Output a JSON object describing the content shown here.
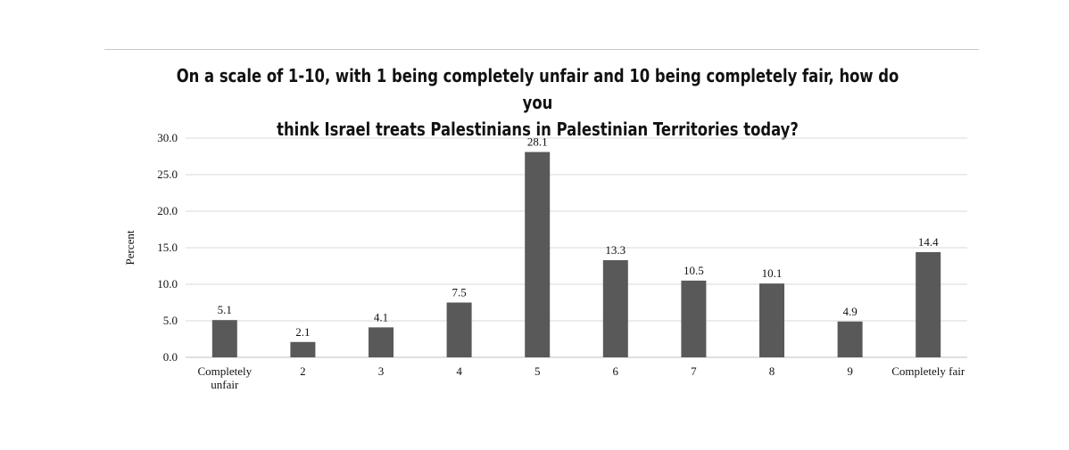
{
  "chart_data": {
    "type": "bar",
    "title_lines": [
      "On a scale of 1-10, with 1 being completely unfair and 10 being completely fair, how do you",
      "think Israel treats Palestinians in Palestinian Territories today?"
    ],
    "xlabel": "",
    "ylabel": "Percent",
    "ylim": [
      0,
      30
    ],
    "yticks": [
      "0.0",
      "5.0",
      "10.0",
      "15.0",
      "20.0",
      "25.0",
      "30.0"
    ],
    "categories": [
      [
        "Completely",
        "unfair"
      ],
      [
        "2"
      ],
      [
        "3"
      ],
      [
        "4"
      ],
      [
        "5"
      ],
      [
        "6"
      ],
      [
        "7"
      ],
      [
        "8"
      ],
      [
        "9"
      ],
      [
        "Completely fair"
      ]
    ],
    "values": [
      5.1,
      2.1,
      4.1,
      7.5,
      28.1,
      13.3,
      10.5,
      10.1,
      4.9,
      14.4
    ],
    "value_labels": [
      "5.1",
      "2.1",
      "4.1",
      "7.5",
      "28.1",
      "13.3",
      "10.5",
      "10.1",
      "4.9",
      "14.4"
    ],
    "bar_color": "#595959",
    "grid": true,
    "legend": "none"
  }
}
